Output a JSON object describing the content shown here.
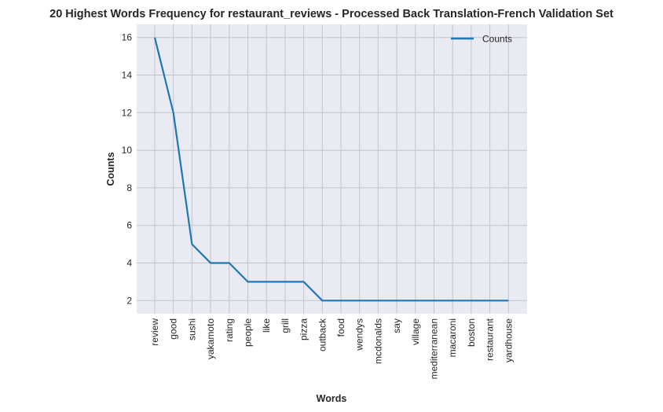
{
  "chart_data": {
    "type": "line",
    "title": "20 Highest Words Frequency for restaurant_reviews - Processed Back Translation-French Validation Set",
    "xlabel": "Words",
    "ylabel": "Counts",
    "categories": [
      "review",
      "good",
      "sushi",
      "yakamoto",
      "rating",
      "people",
      "like",
      "grill",
      "pizza",
      "outback",
      "food",
      "wendys",
      "mcdonalds",
      "say",
      "village",
      "mediterranean",
      "macaroni",
      "boston",
      "restaurant",
      "yardhouse"
    ],
    "series": [
      {
        "name": "Counts",
        "values": [
          16,
          12,
          5,
          4,
          4,
          3,
          3,
          3,
          3,
          2,
          2,
          2,
          2,
          2,
          2,
          2,
          2,
          2,
          2,
          2
        ]
      }
    ],
    "yticks": [
      "2",
      "4",
      "6",
      "8",
      "10",
      "12",
      "14",
      "16"
    ],
    "ylim": [
      1.3,
      16.7
    ],
    "grid": true,
    "legend_position": "top-right",
    "colors": {
      "line": "#1f77b4",
      "plot_background": "#eaeaf2",
      "grid": "#c4c4cc"
    }
  }
}
